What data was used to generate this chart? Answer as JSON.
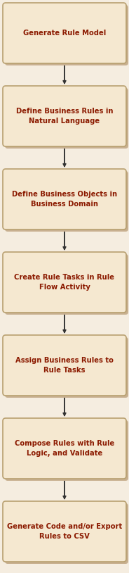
{
  "background_color": "#f5ede0",
  "box_fill_color": "#f5e8d0",
  "box_edge_color": "#b8a070",
  "box_shadow_color": "#c8b090",
  "text_color": "#8B1A00",
  "arrow_color": "#333333",
  "steps": [
    "Generate Rule Model",
    "Define Business Rules in\nNatural Language",
    "Define Business Objects in\nBusiness Domain",
    "Create Rule Tasks in Rule\nFlow Activity",
    "Assign Business Rules to\nRule Tasks",
    "Compose Rules with Rule\nLogic, and Validate",
    "Generate Code and/or Export\nRules to CSV"
  ],
  "fig_width": 1.84,
  "fig_height": 8.14,
  "dpi": 100,
  "font_size": 7.2,
  "font_family": "DejaVu Sans"
}
